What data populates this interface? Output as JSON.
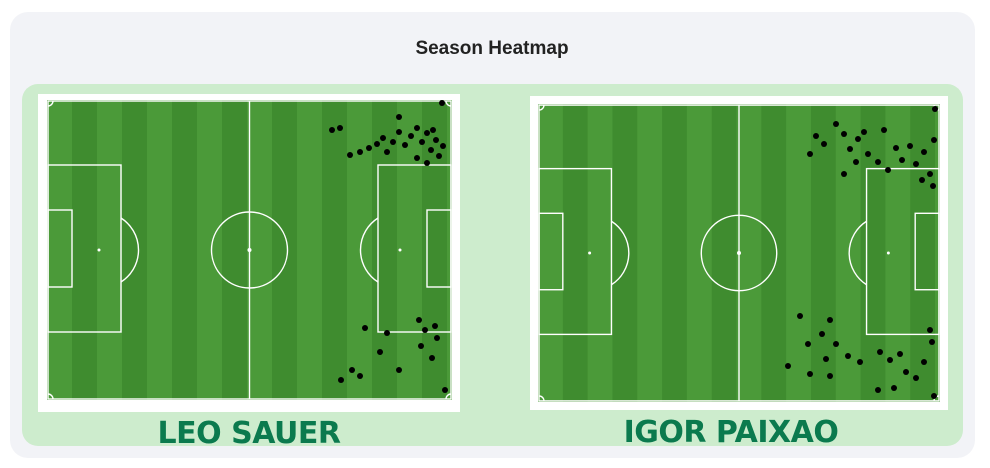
{
  "title": "Season Heatmap",
  "players": [
    {
      "name": "LEO SAUER"
    },
    {
      "name": "IGOR PAIXAO"
    }
  ]
}
